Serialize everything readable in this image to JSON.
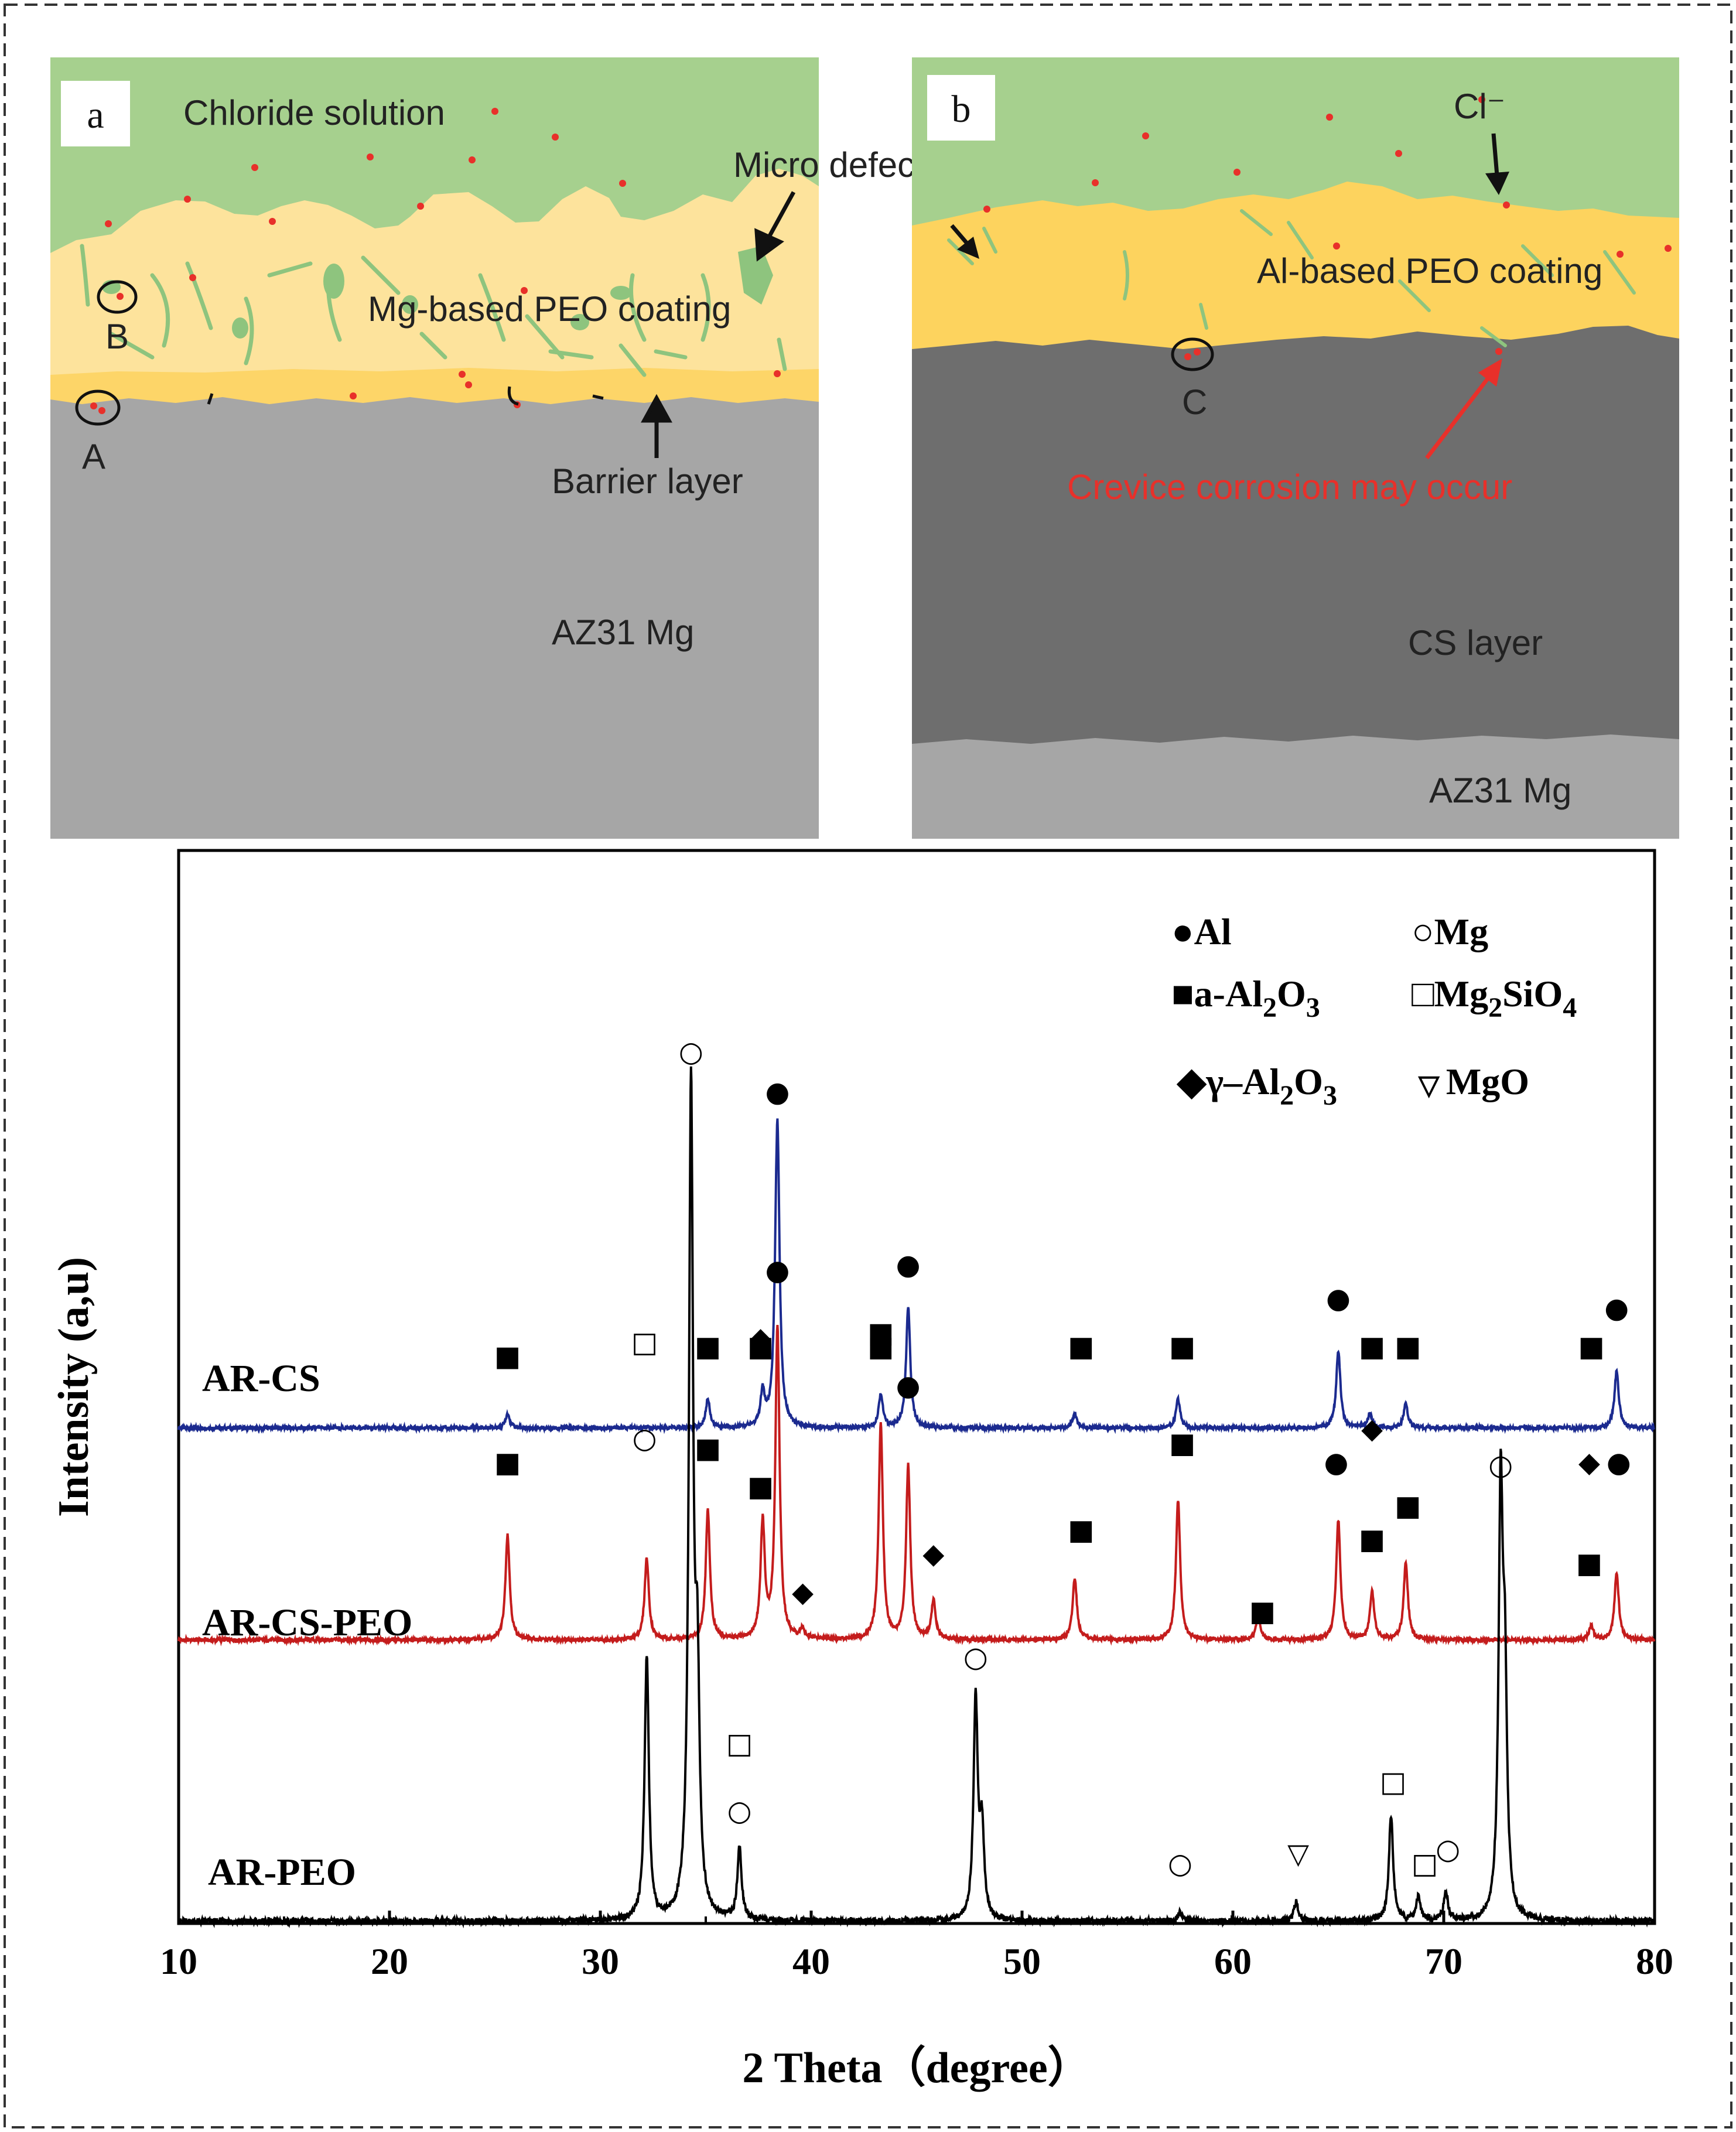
{
  "panel_a": {
    "letter": "a",
    "solution": "Chloride solution",
    "defects": "Micro defects",
    "coating": "Mg-based PEO coating",
    "barrier": "Barrier layer",
    "substrate": "AZ31 Mg",
    "site_a": "A",
    "site_b": "B"
  },
  "panel_b": {
    "letter": "b",
    "ion": "Cl⁻",
    "coating": "Al-based PEO coating",
    "crevice": "Crevice corrosion may occur",
    "cs_layer": "CS layer",
    "substrate": "AZ31 Mg",
    "site_c": "C"
  },
  "colors": {
    "solution": "#a6d08e",
    "coating": "#fde39c",
    "barrier": "#fdd568",
    "al_coating": "#fdd35e",
    "substrate": "#a6a6a6",
    "cs_layer": "#6e6e6e",
    "dots": "#e8302a",
    "crevice_text": "#e8302a",
    "ar_cs": "#1b2a8f",
    "ar_cs_peo": "#c41c1c",
    "ar_peo": "#000000"
  },
  "chart_data": {
    "type": "line",
    "xlabel": "2 Theta（degree）",
    "ylabel": "Intensity (a,u)",
    "xlim": [
      10,
      80
    ],
    "xticks": [
      "10",
      "20",
      "30",
      "40",
      "50",
      "60",
      "70",
      "80"
    ],
    "legend": [
      {
        "symbol": "●",
        "label": "Al"
      },
      {
        "symbol": "○",
        "label": "Mg"
      },
      {
        "symbol": "■",
        "label": "a-Al2O3"
      },
      {
        "symbol": "□",
        "label": "Mg2SiO4"
      },
      {
        "symbol": "◆",
        "label": "γ–Al2O3"
      },
      {
        "symbol": "▽",
        "label": "MgO"
      }
    ],
    "series": [
      {
        "name": "AR-CS",
        "peaks": [
          [
            25.6,
            0.03
          ],
          [
            35.1,
            0.06
          ],
          [
            37.7,
            0.07
          ],
          [
            38.3,
            0.05
          ],
          [
            38.4,
            0.61
          ],
          [
            43.3,
            0.07
          ],
          [
            44.6,
            0.25
          ],
          [
            52.5,
            0.03
          ],
          [
            57.4,
            0.06
          ],
          [
            65.0,
            0.16
          ],
          [
            66.5,
            0.03
          ],
          [
            68.2,
            0.05
          ],
          [
            78.2,
            0.12
          ]
        ],
        "markers": [
          {
            "x": 25.6,
            "symbol": "■",
            "level": 0.13
          },
          {
            "x": 35.1,
            "symbol": "■",
            "level": 0.15
          },
          {
            "x": 37.6,
            "symbol": "■",
            "level": 0.15
          },
          {
            "x": 38.4,
            "symbol": "●",
            "level": 0.68
          },
          {
            "x": 43.3,
            "symbol": "■",
            "level": 0.15
          },
          {
            "x": 44.6,
            "symbol": "●",
            "level": 0.32
          },
          {
            "x": 52.8,
            "symbol": "■",
            "level": 0.15
          },
          {
            "x": 57.6,
            "symbol": "■",
            "level": 0.15
          },
          {
            "x": 65.0,
            "symbol": "●",
            "level": 0.25
          },
          {
            "x": 66.6,
            "symbol": "■",
            "level": 0.15
          },
          {
            "x": 68.3,
            "symbol": "■",
            "level": 0.15
          },
          {
            "x": 77.0,
            "symbol": "■",
            "level": 0.15
          },
          {
            "x": 78.2,
            "symbol": "●",
            "level": 0.23
          }
        ]
      },
      {
        "name": "AR-CS-PEO",
        "peaks": [
          [
            25.6,
            0.22
          ],
          [
            32.2,
            0.17
          ],
          [
            35.1,
            0.27
          ],
          [
            37.7,
            0.24
          ],
          [
            38.4,
            0.65
          ],
          [
            39.6,
            0.02
          ],
          [
            43.3,
            0.45
          ],
          [
            44.6,
            0.36
          ],
          [
            45.8,
            0.08
          ],
          [
            52.5,
            0.13
          ],
          [
            57.4,
            0.29
          ],
          [
            61.2,
            0.05
          ],
          [
            65.0,
            0.25
          ],
          [
            66.6,
            0.1
          ],
          [
            68.2,
            0.16
          ],
          [
            77.0,
            0.03
          ],
          [
            78.2,
            0.14
          ]
        ],
        "markers": [
          {
            "x": 25.6,
            "symbol": "■",
            "level": 0.35
          },
          {
            "x": 32.1,
            "symbol": "□",
            "level": 0.6
          },
          {
            "x": 32.1,
            "symbol": "○",
            "level": 0.4
          },
          {
            "x": 35.1,
            "symbol": "■",
            "level": 0.38
          },
          {
            "x": 37.6,
            "symbol": "◆",
            "level": 0.61
          },
          {
            "x": 37.6,
            "symbol": "■",
            "level": 0.3
          },
          {
            "x": 38.4,
            "symbol": "●",
            "level": 0.75
          },
          {
            "x": 39.6,
            "symbol": "◆",
            "level": 0.08
          },
          {
            "x": 43.3,
            "symbol": "■",
            "level": 0.62
          },
          {
            "x": 44.6,
            "symbol": "●",
            "level": 0.51
          },
          {
            "x": 45.8,
            "symbol": "◆",
            "level": 0.16
          },
          {
            "x": 52.8,
            "symbol": "■",
            "level": 0.21
          },
          {
            "x": 57.6,
            "symbol": "■",
            "level": 0.39
          },
          {
            "x": 61.4,
            "symbol": "■",
            "level": 0.04
          },
          {
            "x": 64.9,
            "symbol": "●",
            "level": 0.35
          },
          {
            "x": 66.6,
            "symbol": "◆",
            "level": 0.42
          },
          {
            "x": 66.6,
            "symbol": "■",
            "level": 0.19
          },
          {
            "x": 68.3,
            "symbol": "■",
            "level": 0.26
          },
          {
            "x": 76.9,
            "symbol": "◆",
            "level": 0.35
          },
          {
            "x": 76.9,
            "symbol": "■",
            "level": 0.14
          },
          {
            "x": 78.3,
            "symbol": "●",
            "level": 0.35
          }
        ]
      },
      {
        "name": "AR-PEO",
        "peaks": [
          [
            32.2,
            0.55
          ],
          [
            34.3,
            1.72
          ],
          [
            34.6,
            0.45
          ],
          [
            36.6,
            0.15
          ],
          [
            47.8,
            0.46
          ],
          [
            48.1,
            0.18
          ],
          [
            57.5,
            0.02
          ],
          [
            63.0,
            0.04
          ],
          [
            67.5,
            0.22
          ],
          [
            68.8,
            0.05
          ],
          [
            70.1,
            0.06
          ],
          [
            72.7,
            0.86
          ],
          [
            72.9,
            0.45
          ]
        ],
        "markers": [
          {
            "x": 34.3,
            "symbol": "○",
            "level": 1.79
          },
          {
            "x": 36.6,
            "symbol": "□",
            "level": 0.35
          },
          {
            "x": 36.6,
            "symbol": "○",
            "level": 0.21
          },
          {
            "x": 47.8,
            "symbol": "○",
            "level": 0.53
          },
          {
            "x": 57.5,
            "symbol": "○",
            "level": 0.1
          },
          {
            "x": 63.1,
            "symbol": "▽",
            "level": 0.12
          },
          {
            "x": 67.6,
            "symbol": "□",
            "level": 0.27
          },
          {
            "x": 69.1,
            "symbol": "□",
            "level": 0.1
          },
          {
            "x": 70.2,
            "symbol": "○",
            "level": 0.13
          },
          {
            "x": 72.7,
            "symbol": "○",
            "level": 0.93
          }
        ]
      }
    ]
  }
}
